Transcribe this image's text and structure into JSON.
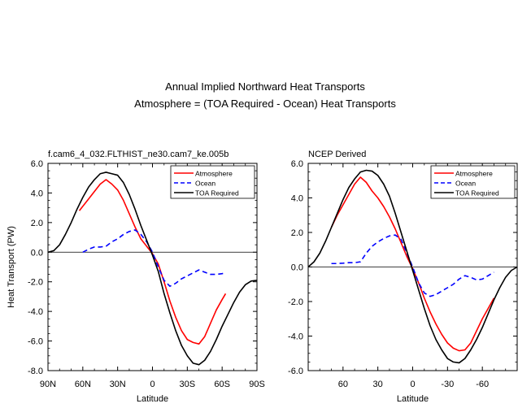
{
  "figure": {
    "title": "Annual Implied Northward Heat Transports",
    "subtitle": "Atmosphere = (TOA Required - Ocean) Heat Transports"
  },
  "chart_data": [
    {
      "type": "line",
      "title": "f.cam6_4_032.FLTHIST_ne30.cam7_ke.005b",
      "xlabel": "Latitude",
      "ylabel": "Heat Transport (PW)",
      "xlim": [
        90,
        -90
      ],
      "ylim": [
        -8,
        6
      ],
      "x_ticks": [
        90,
        60,
        30,
        0,
        -30,
        -60,
        -90
      ],
      "x_tick_labels": [
        "90N",
        "60N",
        "30N",
        "0",
        "30S",
        "60S",
        "90S"
      ],
      "y_ticks": [
        -8,
        -6,
        -4,
        -2,
        0,
        2,
        4,
        6
      ],
      "y_tick_labels": [
        "-8.0",
        "-6.0",
        "-4.0",
        "-2.0",
        "0.0",
        "2.0",
        "4.0",
        "6.0"
      ],
      "zero_line": true,
      "grid": false,
      "legend_position": "top-right",
      "series": [
        {
          "name": "Atmosphere",
          "color": "#ff0000",
          "dash": "solid",
          "x": [
            63,
            55,
            45,
            40,
            35,
            30,
            25,
            20,
            15,
            10,
            5,
            0,
            -5,
            -10,
            -15,
            -20,
            -25,
            -30,
            -35,
            -40,
            -45,
            -50,
            -55,
            -60,
            -63
          ],
          "y": [
            2.8,
            3.6,
            4.6,
            4.9,
            4.6,
            4.2,
            3.5,
            2.6,
            1.7,
            0.9,
            0.4,
            -0.1,
            -0.8,
            -2.0,
            -3.3,
            -4.4,
            -5.3,
            -5.9,
            -6.1,
            -6.2,
            -5.7,
            -4.8,
            -3.9,
            -3.2,
            -2.8
          ]
        },
        {
          "name": "Ocean",
          "color": "#0000ff",
          "dash": "dashed",
          "x": [
            60,
            55,
            50,
            45,
            40,
            35,
            30,
            25,
            20,
            15,
            10,
            5,
            0,
            -5,
            -10,
            -15,
            -20,
            -25,
            -30,
            -35,
            -40,
            -45,
            -50,
            -55,
            -60,
            -63
          ],
          "y": [
            0.0,
            0.2,
            0.35,
            0.35,
            0.4,
            0.7,
            0.9,
            1.2,
            1.4,
            1.5,
            1.2,
            0.7,
            0.0,
            -1.0,
            -1.9,
            -2.3,
            -2.1,
            -1.8,
            -1.6,
            -1.4,
            -1.2,
            -1.35,
            -1.5,
            -1.5,
            -1.45,
            -1.4
          ]
        },
        {
          "name": "TOA Required",
          "color": "#000000",
          "dash": "solid",
          "x": [
            90,
            85,
            80,
            75,
            70,
            65,
            60,
            55,
            50,
            45,
            40,
            35,
            30,
            25,
            20,
            15,
            10,
            5,
            0,
            -5,
            -10,
            -15,
            -20,
            -25,
            -30,
            -35,
            -40,
            -45,
            -50,
            -55,
            -60,
            -65,
            -70,
            -75,
            -80,
            -85,
            -90
          ],
          "y": [
            0.0,
            0.1,
            0.5,
            1.2,
            2.0,
            2.9,
            3.7,
            4.4,
            4.9,
            5.3,
            5.4,
            5.3,
            5.2,
            4.7,
            3.9,
            2.9,
            1.8,
            0.8,
            -0.2,
            -1.3,
            -2.8,
            -4.1,
            -5.3,
            -6.3,
            -7.0,
            -7.5,
            -7.6,
            -7.3,
            -6.7,
            -5.9,
            -5.0,
            -4.2,
            -3.4,
            -2.7,
            -2.2,
            -1.95,
            -1.9
          ]
        }
      ]
    },
    {
      "type": "line",
      "title": "NCEP Derived",
      "xlabel": "Latitude",
      "ylabel": "",
      "xlim": [
        90,
        -90
      ],
      "ylim": [
        -6,
        6
      ],
      "x_ticks": [
        60,
        30,
        0,
        -30,
        -60
      ],
      "x_tick_labels": [
        "60",
        "30",
        "0",
        "-30",
        "-60"
      ],
      "y_ticks": [
        -6,
        -4,
        -2,
        0,
        2,
        4,
        6
      ],
      "y_tick_labels": [
        "-6.0",
        "-4.0",
        "-2.0",
        "0.0",
        "2.0",
        "4.0",
        "6.0"
      ],
      "zero_line": true,
      "grid": false,
      "legend_position": "top-right",
      "series": [
        {
          "name": "Atmosphere",
          "color": "#ff0000",
          "dash": "solid",
          "x": [
            70,
            65,
            60,
            55,
            50,
            45,
            40,
            35,
            30,
            25,
            20,
            15,
            10,
            5,
            0,
            -5,
            -10,
            -15,
            -20,
            -25,
            -30,
            -35,
            -40,
            -45,
            -50,
            -55,
            -60,
            -65,
            -70
          ],
          "y": [
            2.3,
            3.0,
            3.6,
            4.2,
            4.8,
            5.2,
            4.9,
            4.4,
            4.0,
            3.5,
            2.9,
            2.2,
            1.4,
            0.6,
            -0.1,
            -0.9,
            -1.8,
            -2.6,
            -3.3,
            -3.9,
            -4.4,
            -4.7,
            -4.85,
            -4.8,
            -4.4,
            -3.7,
            -3.0,
            -2.4,
            -1.8
          ]
        },
        {
          "name": "Ocean",
          "color": "#0000ff",
          "dash": "dashed",
          "x": [
            70,
            65,
            60,
            55,
            50,
            45,
            40,
            35,
            30,
            25,
            20,
            15,
            10,
            5,
            0,
            -5,
            -10,
            -15,
            -20,
            -25,
            -30,
            -35,
            -40,
            -45,
            -50,
            -55,
            -60,
            -65,
            -70
          ],
          "y": [
            0.2,
            0.2,
            0.22,
            0.25,
            0.25,
            0.3,
            0.8,
            1.2,
            1.45,
            1.65,
            1.8,
            1.85,
            1.6,
            0.8,
            0.0,
            -0.9,
            -1.5,
            -1.7,
            -1.6,
            -1.4,
            -1.2,
            -1.0,
            -0.7,
            -0.5,
            -0.6,
            -0.75,
            -0.7,
            -0.5,
            -0.3
          ]
        },
        {
          "name": "TOA Required",
          "color": "#000000",
          "dash": "solid",
          "x": [
            90,
            85,
            80,
            75,
            70,
            65,
            60,
            55,
            50,
            45,
            40,
            35,
            30,
            25,
            20,
            15,
            10,
            5,
            0,
            -5,
            -10,
            -15,
            -20,
            -25,
            -30,
            -35,
            -40,
            -45,
            -50,
            -55,
            -60,
            -65,
            -70,
            -75,
            -80,
            -85,
            -90
          ],
          "y": [
            0.0,
            0.3,
            0.8,
            1.5,
            2.3,
            3.1,
            3.9,
            4.6,
            5.1,
            5.5,
            5.6,
            5.55,
            5.3,
            4.8,
            4.1,
            3.1,
            2.0,
            0.9,
            -0.2,
            -1.3,
            -2.4,
            -3.4,
            -4.2,
            -4.8,
            -5.3,
            -5.5,
            -5.55,
            -5.3,
            -4.8,
            -4.2,
            -3.5,
            -2.7,
            -1.9,
            -1.2,
            -0.6,
            -0.2,
            0.0
          ]
        }
      ]
    }
  ]
}
